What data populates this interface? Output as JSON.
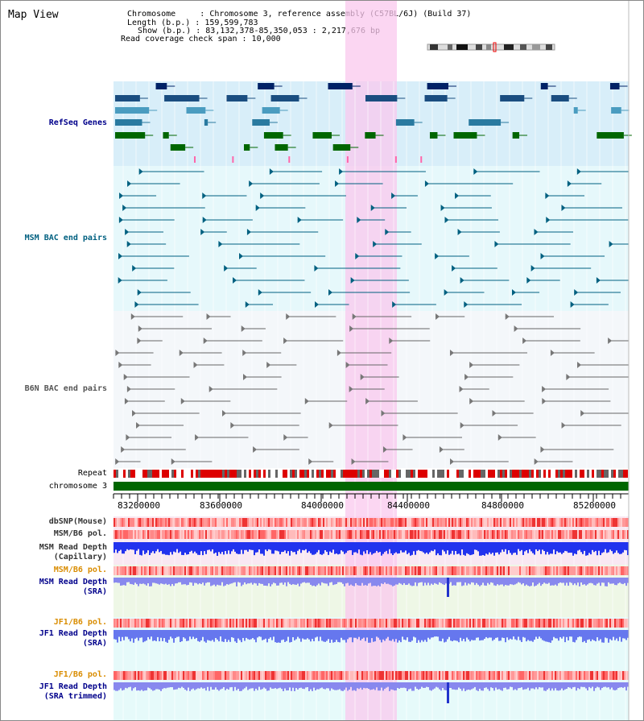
{
  "header": {
    "title": "Map View",
    "chromosome_line": "Chromosome     : Chromosome 3, reference assembly (C57BL/6J) (Build 37)",
    "length_line": "Length (b.p.) : 159,599,783",
    "show_line": "Show (b.p.) : 83,132,378-85,350,053 : 2,217,676 bp",
    "coverage_line": "Read coverage check span : 10,000"
  },
  "tracks": {
    "refseq": {
      "label": "RefSeq Genes",
      "color": "#00008b"
    },
    "msm_bac": {
      "label": "MSM BAC end pairs",
      "color": "#006080"
    },
    "b6n_bac": {
      "label": "B6N BAC end pairs",
      "color": "#555555"
    },
    "repeat": {
      "label": "Repeat"
    },
    "chromosome": {
      "label": "chromosome 3"
    },
    "dbsnp": {
      "label": "dbSNP(Mouse)"
    },
    "msm_b6_pol": {
      "label": "MSM/B6 pol."
    },
    "msm_depth_cap": {
      "label": "MSM Read Depth",
      "label2": "(Capillary)"
    },
    "msm_b6_pol2": {
      "label": "MSM/B6 pol.",
      "color": "#d98c00"
    },
    "msm_depth_sra": {
      "label": "MSM Read Depth",
      "label2": "(SRA)",
      "color": "#00008b"
    },
    "jf1_b6_pol": {
      "label": "JF1/B6 pol.",
      "color": "#d98c00"
    },
    "jf1_depth_sra": {
      "label": "JF1 Read Depth",
      "label2": "(SRA)",
      "color": "#00008b"
    },
    "jf1_b6_pol2": {
      "label": "JF1/B6 pol.",
      "color": "#d98c00"
    },
    "jf1_depth_trim": {
      "label": "JF1 Read Depth",
      "label2": "(SRA trimmed)",
      "color": "#00008b"
    }
  },
  "ruler": {
    "ticks": [
      "83200000",
      "83600000",
      "84000000",
      "84400000",
      "84800000",
      "85200000"
    ]
  }
}
